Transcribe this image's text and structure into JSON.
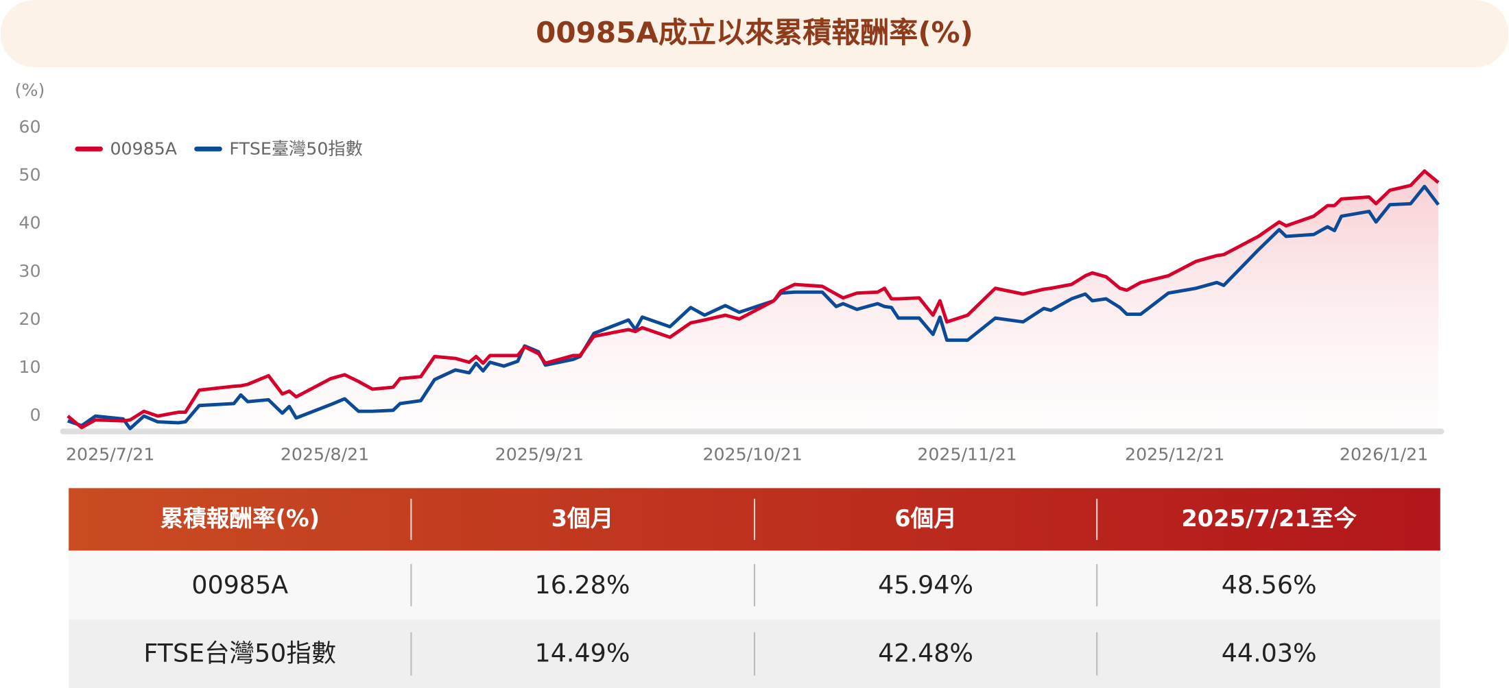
{
  "chart_data": {
    "type": "line",
    "title": "00985A成立以來累積報酬率(%)",
    "y_label": "(%)",
    "x": [
      "2025-07-21",
      "2025-07-23",
      "2025-07-25",
      "2025-07-29",
      "2025-07-30",
      "2025-08-01",
      "2025-08-03",
      "2025-08-06",
      "2025-08-07",
      "2025-08-09",
      "2025-08-14",
      "2025-08-15",
      "2025-08-16",
      "2025-08-19",
      "2025-08-21",
      "2025-08-22",
      "2025-08-23",
      "2025-08-28",
      "2025-08-30",
      "2025-09-01",
      "2025-09-03",
      "2025-09-06",
      "2025-09-07",
      "2025-09-10",
      "2025-09-12",
      "2025-09-15",
      "2025-09-17",
      "2025-09-18",
      "2025-09-19",
      "2025-09-20",
      "2025-09-22",
      "2025-09-24",
      "2025-09-25",
      "2025-09-27",
      "2025-09-28",
      "2025-10-02",
      "2025-10-03",
      "2025-10-05",
      "2025-10-10",
      "2025-10-11",
      "2025-10-12",
      "2025-10-16",
      "2025-10-19",
      "2025-10-21",
      "2025-10-24",
      "2025-10-26",
      "2025-10-31",
      "2025-11-01",
      "2025-11-03",
      "2025-11-07",
      "2025-11-09",
      "2025-11-10",
      "2025-11-12",
      "2025-11-15",
      "2025-11-16",
      "2025-11-17",
      "2025-11-18",
      "2025-11-21",
      "2025-11-23",
      "2025-11-24",
      "2025-11-25",
      "2025-11-28",
      "2025-12-02",
      "2025-12-06",
      "2025-12-09",
      "2025-12-10",
      "2025-12-13",
      "2025-12-15",
      "2025-12-16",
      "2025-12-18",
      "2025-12-20",
      "2025-12-21",
      "2025-12-23",
      "2025-12-27",
      "2025-12-31",
      "2026-01-03",
      "2026-01-04",
      "2026-01-09",
      "2026-01-12",
      "2026-01-13",
      "2026-01-17",
      "2026-01-19",
      "2026-01-20",
      "2026-01-21",
      "2026-01-25",
      "2026-01-26",
      "2026-01-28",
      "2026-01-31",
      "2026-02-02",
      "2026-02-04"
    ],
    "series": [
      {
        "name": "00985A",
        "color": "#d6002a",
        "values": [
          0,
          -2.4,
          -0.8,
          -1,
          -0.8,
          1,
          0,
          0.8,
          0.8,
          5.4,
          6.2,
          6.3,
          6.6,
          8.4,
          4.6,
          5.2,
          4,
          7.8,
          8.6,
          7.2,
          5.6,
          6,
          7.8,
          8.2,
          12.4,
          12,
          11.2,
          12.4,
          11,
          12.6,
          12.6,
          12.6,
          14.4,
          13,
          11,
          12.6,
          12.6,
          16.6,
          18,
          17.6,
          18.4,
          16.4,
          19.4,
          20,
          21,
          20.2,
          24,
          26,
          27.4,
          27,
          25.4,
          24.6,
          25.6,
          25.8,
          26.6,
          24.4,
          24.4,
          24.6,
          21,
          24,
          19.6,
          21,
          26.6,
          25.4,
          26.4,
          26.6,
          27.4,
          29.2,
          29.8,
          29,
          26.6,
          26.2,
          27.8,
          29.2,
          32.2,
          33.4,
          33.6,
          37.4,
          40.4,
          39.6,
          41.6,
          43.8,
          43.8,
          45.2,
          45.6,
          44.2,
          47,
          48,
          51,
          48.6
        ]
      },
      {
        "name": "FTSE臺灣50指數",
        "color": "#0b4a97",
        "values": [
          -1,
          -2,
          0,
          -0.6,
          -2.6,
          0,
          -1.2,
          -1.4,
          -1.2,
          2.2,
          2.6,
          4.4,
          3,
          3.4,
          0.6,
          2,
          -0.4,
          2.4,
          3.6,
          1,
          1,
          1.2,
          2.6,
          3.2,
          7.6,
          9.6,
          9,
          11,
          9.4,
          11.2,
          10.4,
          11.4,
          14.6,
          13.4,
          10.6,
          11.8,
          12.4,
          17.2,
          20,
          18,
          20.6,
          18.6,
          22.6,
          21,
          23,
          21.6,
          24,
          25.6,
          25.8,
          25.8,
          22.8,
          23.4,
          22.2,
          23.4,
          22.8,
          22.6,
          20.4,
          20.4,
          17,
          20.6,
          15.8,
          15.8,
          20.4,
          19.6,
          22.4,
          22,
          24.4,
          25.4,
          24,
          24.4,
          22.6,
          21.2,
          21.2,
          25.6,
          26.6,
          27.8,
          27.2,
          34.6,
          38.8,
          37.4,
          37.8,
          39.4,
          38.6,
          41.6,
          42.6,
          40.4,
          44,
          44.2,
          47.8,
          44
        ]
      }
    ],
    "xlim": [
      "2025-07-21",
      "2026-02-04"
    ],
    "xticks": [
      {
        "value": "2025-07-21",
        "label": "2025/7/21"
      },
      {
        "value": "2025-08-21",
        "label": "2025/8/21"
      },
      {
        "value": "2025-09-21",
        "label": "2025/9/21"
      },
      {
        "value": "2025-10-21",
        "label": "2025/10/21"
      },
      {
        "value": "2025-11-21",
        "label": "2025/11/21"
      },
      {
        "value": "2025-12-21",
        "label": "2025/12/21"
      },
      {
        "value": "2026-01-21",
        "label": "2026/1/21"
      }
    ],
    "ylim": [
      -3,
      60
    ],
    "yticks": [
      0,
      10,
      20,
      30,
      40,
      50,
      60
    ]
  },
  "table": {
    "header": [
      "累積報酬率(%)",
      "3個月",
      "6個月",
      "2025/7/21至今"
    ],
    "rows": [
      [
        "00985A",
        "16.28%",
        "45.94%",
        "48.56%"
      ],
      [
        "FTSE台灣50指數",
        "14.49%",
        "42.48%",
        "44.03%"
      ]
    ]
  }
}
